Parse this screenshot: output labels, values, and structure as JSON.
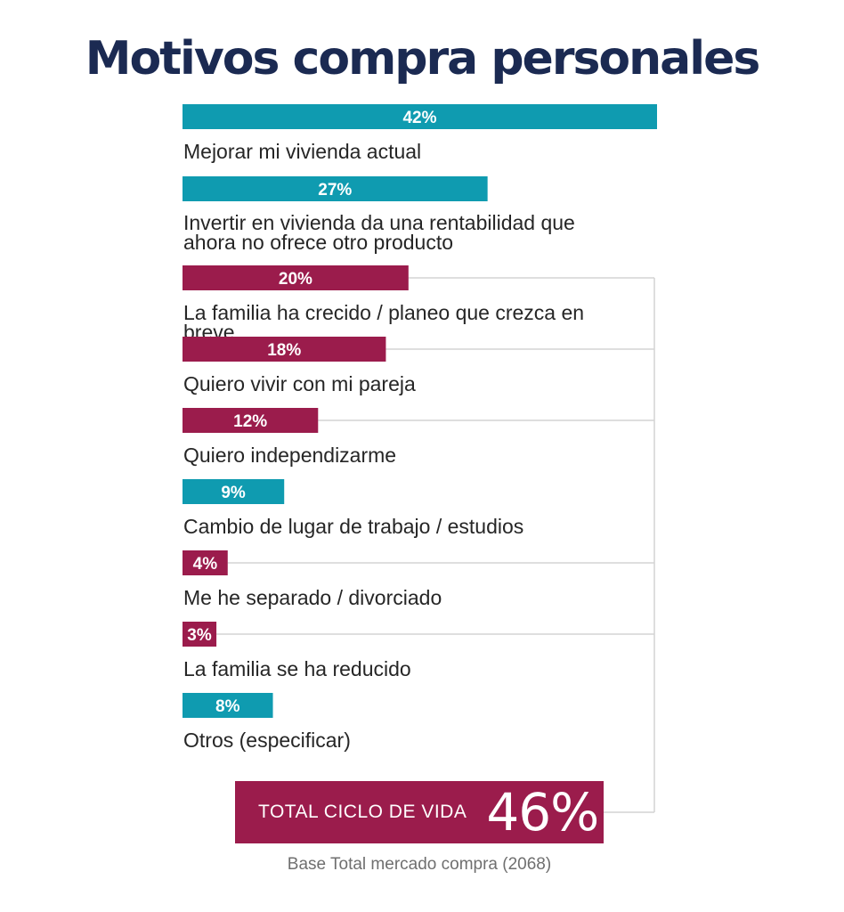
{
  "chart_data": {
    "type": "bar",
    "orientation": "horizontal",
    "title": "Motivos compra personales",
    "colors": {
      "teal": "#0f9bb0",
      "crimson": "#9b1c4c",
      "bracket_line": "#d4d4d4",
      "title": "#1b2a52"
    },
    "categories": [
      {
        "label": "Mejorar mi vivienda actual",
        "value": 42,
        "display": "42%",
        "color": "teal",
        "life_cycle": false
      },
      {
        "label": "Invertir en vivienda da una rentabilidad que ahora no ofrece otro producto",
        "value": 27,
        "display": "27%",
        "color": "teal",
        "life_cycle": false
      },
      {
        "label": "La familia ha crecido / planeo que crezca en breve",
        "value": 20,
        "display": "20%",
        "color": "crimson",
        "life_cycle": true
      },
      {
        "label": "Quiero vivir con mi pareja",
        "value": 18,
        "display": "18%",
        "color": "crimson",
        "life_cycle": true
      },
      {
        "label": "Quiero independizarme",
        "value": 12,
        "display": "12%",
        "color": "crimson",
        "life_cycle": true
      },
      {
        "label": "Cambio de lugar de trabajo / estudios",
        "value": 9,
        "display": "9%",
        "color": "teal",
        "life_cycle": false
      },
      {
        "label": "Me he separado / divorciado",
        "value": 4,
        "display": "4%",
        "color": "crimson",
        "life_cycle": true
      },
      {
        "label": "La familia se ha reducido",
        "value": 3,
        "display": "3%",
        "color": "crimson",
        "life_cycle": true
      },
      {
        "label": "Otros (especificar)",
        "value": 8,
        "display": "8%",
        "color": "teal",
        "life_cycle": false
      }
    ],
    "total": {
      "label": "TOTAL CICLO DE VIDA",
      "value": "46%"
    },
    "footnote": "Base Total mercado compra (2068)"
  }
}
